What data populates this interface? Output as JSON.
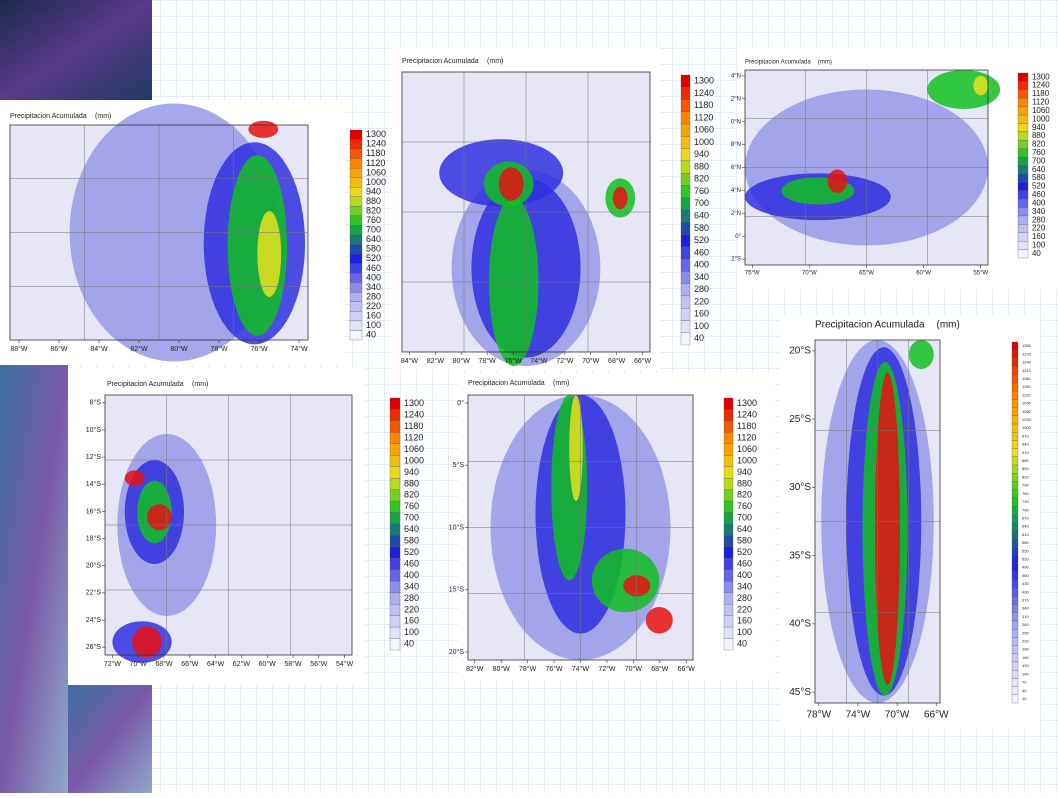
{
  "slide": {
    "panels": [
      {
        "title": "Precipitacion Acumulada",
        "unit": "(mm)",
        "x_labels": [
          "88°W",
          "86°W",
          "84°W",
          "82°W",
          "80°W",
          "78°W",
          "76°W",
          "74°W"
        ],
        "colorbar_labels": [
          1300,
          1240,
          1180,
          1120,
          1060,
          1000,
          940,
          880,
          820,
          760,
          700,
          640,
          580,
          520,
          460,
          400,
          340,
          280,
          220,
          160,
          100,
          40
        ]
      },
      {
        "title": "Precipitacion Acumulada",
        "unit": "(mm)",
        "x_labels": [
          "84°W",
          "82°W",
          "80°W",
          "78°W",
          "76°W",
          "74°W",
          "72°W",
          "70°W",
          "68°W",
          "66°W"
        ],
        "colorbar_labels": [
          1300,
          1240,
          1180,
          1120,
          1060,
          1000,
          940,
          880,
          820,
          760,
          700,
          640,
          580,
          520,
          460,
          400,
          340,
          280,
          220,
          160,
          100,
          40
        ]
      },
      {
        "title": "Precipitacion Acumulada",
        "unit": "(mm)",
        "x_labels": [
          "75°W",
          "70°W",
          "65°W",
          "60°W",
          "55°W"
        ],
        "y_labels": [
          "4°N",
          "2°N",
          "0°N",
          "8°N",
          "6°N",
          "4°N",
          "2°N",
          "0°",
          "2°S"
        ],
        "colorbar_labels": [
          1300,
          1240,
          1180,
          1120,
          1060,
          1000,
          940,
          880,
          820,
          760,
          700,
          640,
          580,
          520,
          460,
          400,
          340,
          280,
          220,
          160,
          100,
          40
        ]
      },
      {
        "title": "Precipitacion Acumulada",
        "unit": "(mm)",
        "x_labels": [
          "72°W",
          "70°W",
          "68°W",
          "66°W",
          "64°W",
          "62°W",
          "60°W",
          "58°W",
          "56°W",
          "54°W"
        ],
        "y_labels": [
          "8°S",
          "10°S",
          "12°S",
          "14°S",
          "16°S",
          "18°S",
          "20°S",
          "22°S",
          "24°S",
          "26°S"
        ],
        "colorbar_labels": [
          1300,
          1240,
          1180,
          1120,
          1060,
          1000,
          940,
          880,
          820,
          760,
          700,
          640,
          580,
          520,
          460,
          400,
          340,
          280,
          220,
          160,
          100,
          40
        ]
      },
      {
        "title": "Precipitacion Acumulada",
        "unit": "(mm)",
        "x_labels": [
          "82°W",
          "80°W",
          "78°W",
          "76°W",
          "74°W",
          "72°W",
          "70°W",
          "68°W",
          "66°W"
        ],
        "y_labels": [
          "0°",
          "5°S",
          "10°S",
          "15°S",
          "20°S"
        ],
        "colorbar_labels": [
          1300,
          1240,
          1180,
          1120,
          1060,
          1000,
          940,
          880,
          820,
          760,
          700,
          640,
          580,
          520,
          460,
          400,
          340,
          280,
          220,
          160,
          100,
          40
        ]
      },
      {
        "title": "Precipitacion Acumulada",
        "unit": "(mm)",
        "x_labels": [
          "78°W",
          "74°W",
          "70°W",
          "66°W"
        ],
        "y_labels": [
          "20°S",
          "25°S",
          "30°S",
          "35°S",
          "40°S",
          "45°S"
        ],
        "colorbar_labels": [
          1300,
          1270,
          1240,
          1210,
          1180,
          1150,
          1120,
          1090,
          1060,
          1030,
          1000,
          970,
          940,
          910,
          880,
          850,
          820,
          790,
          760,
          730,
          700,
          670,
          640,
          610,
          580,
          550,
          520,
          490,
          460,
          430,
          400,
          370,
          340,
          310,
          280,
          250,
          220,
          190,
          160,
          130,
          100,
          70,
          40,
          10
        ]
      }
    ]
  }
}
